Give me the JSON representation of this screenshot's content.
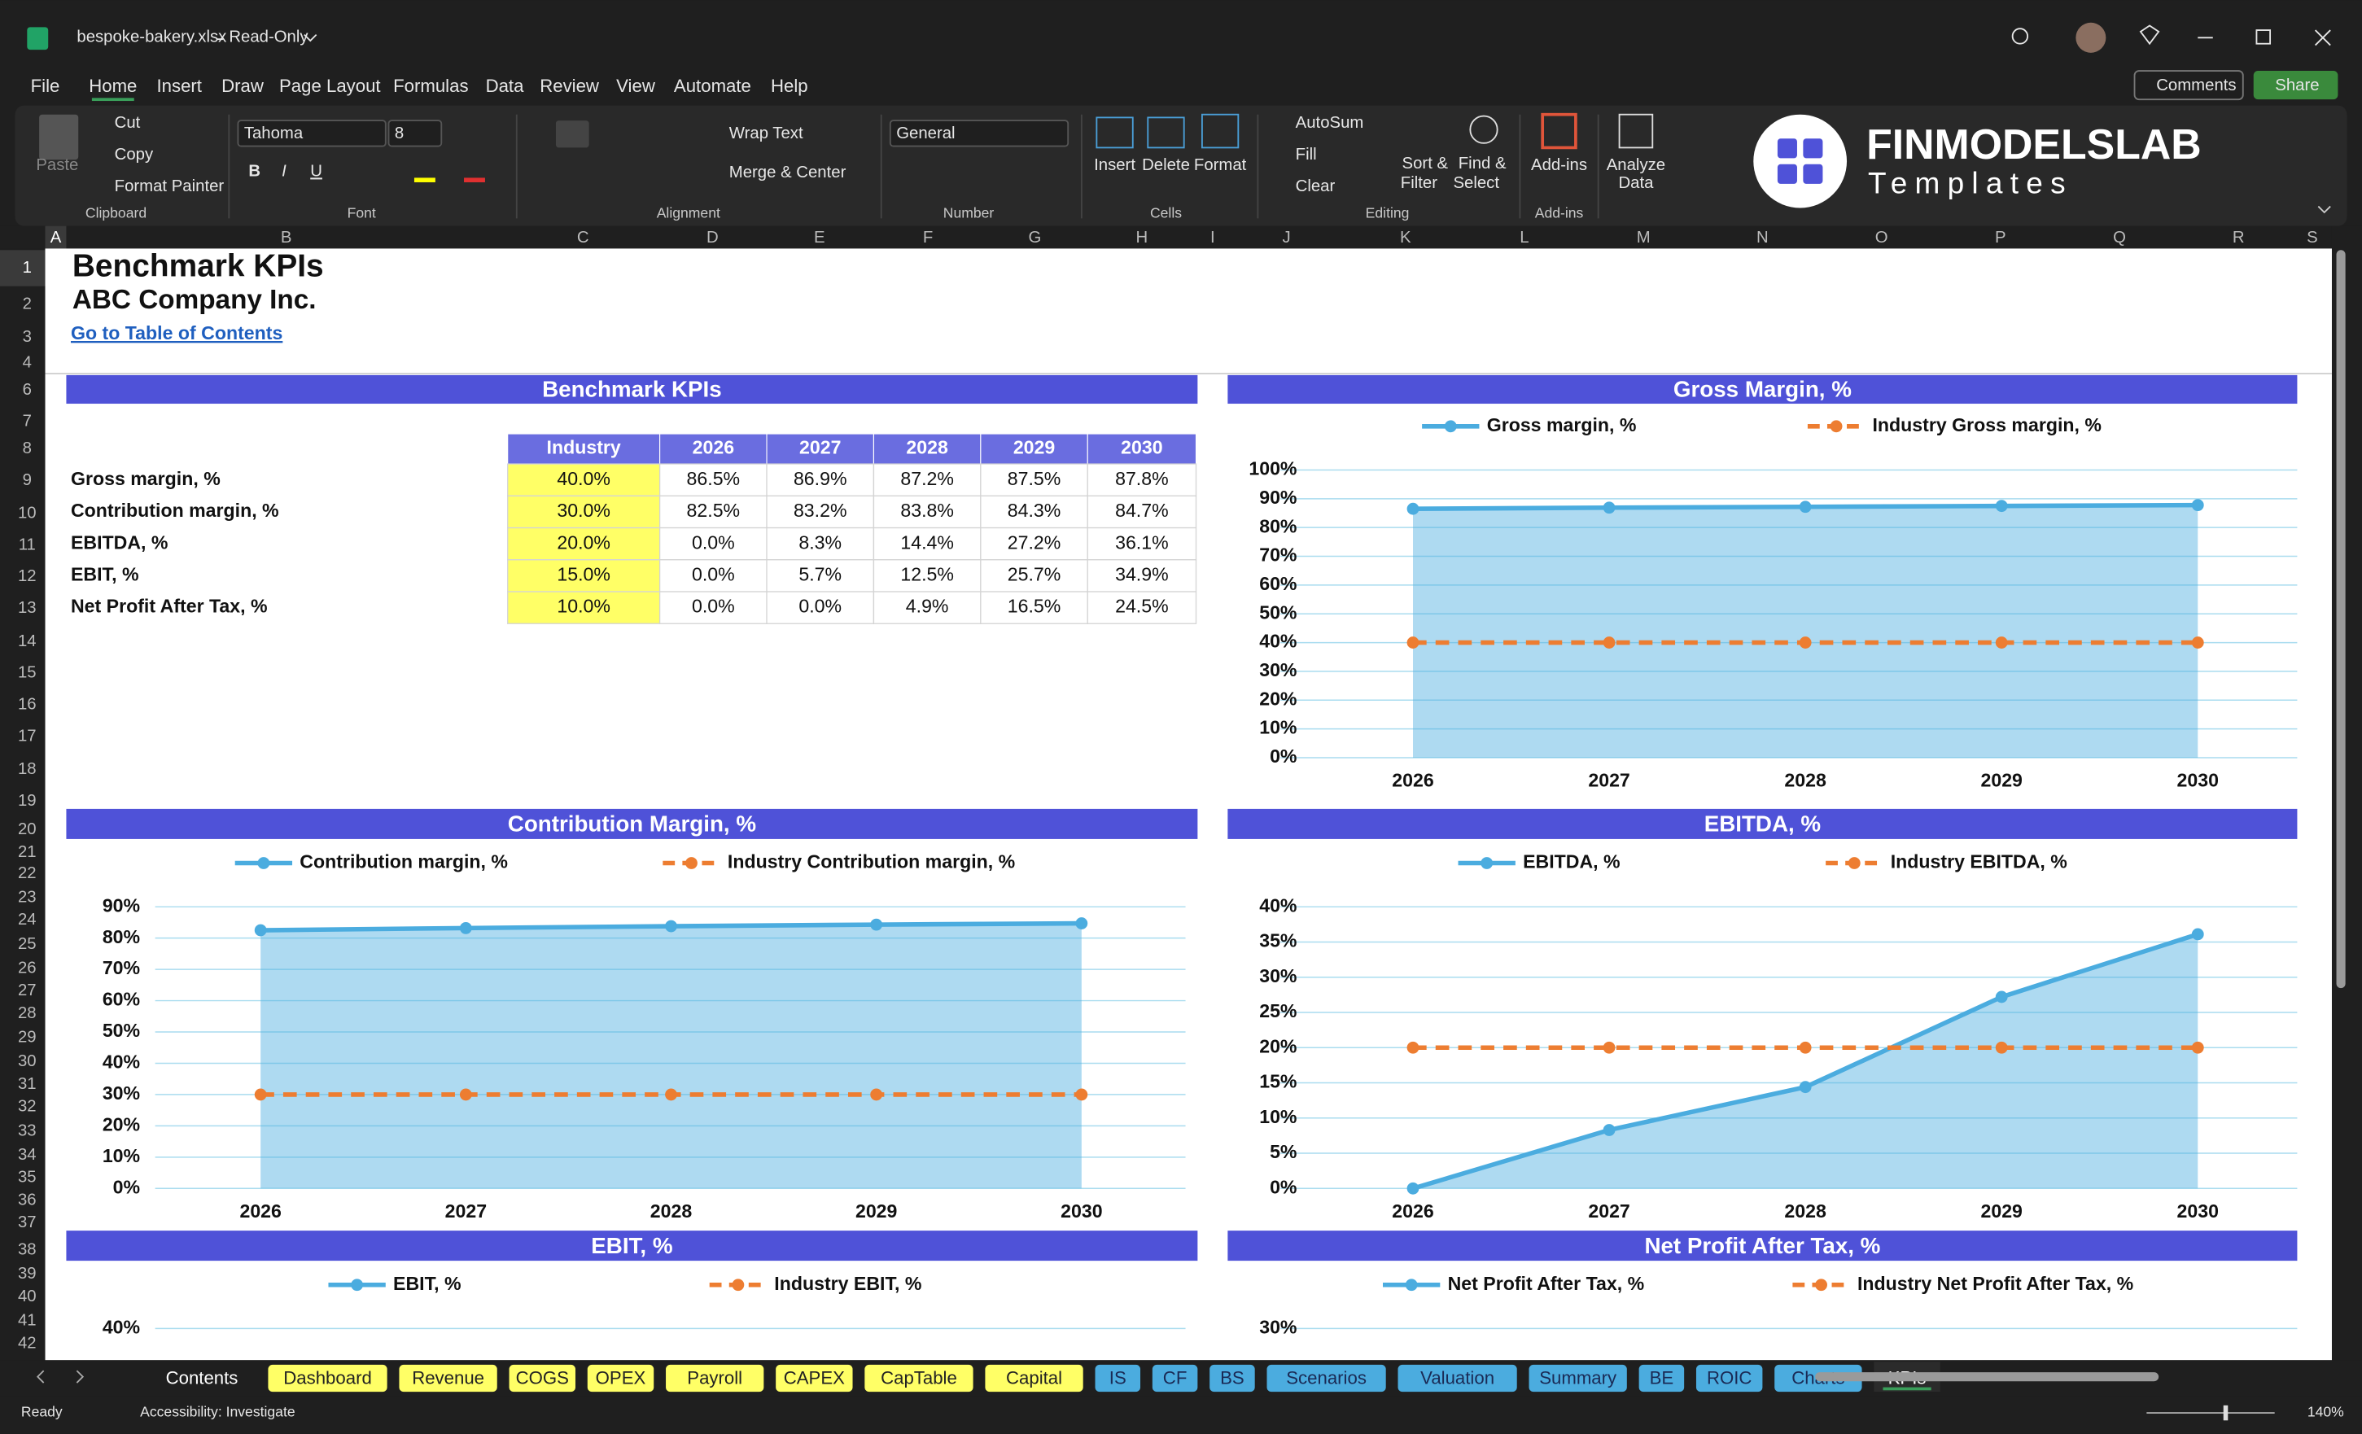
{
  "window": {
    "file_name": "bespoke-bakery.xlsx",
    "mode": "Read-Only"
  },
  "menu": [
    "File",
    "Home",
    "Insert",
    "Draw",
    "Page Layout",
    "Formulas",
    "Data",
    "Review",
    "View",
    "Automate",
    "Help"
  ],
  "top_buttons": {
    "comments": "Comments",
    "share": "Share"
  },
  "ribbon": {
    "clipboard": {
      "paste": "Paste",
      "cut": "Cut",
      "copy": "Copy",
      "format_painter": "Format Painter",
      "label": "Clipboard"
    },
    "font": {
      "name": "Tahoma",
      "size": "8",
      "label": "Font"
    },
    "alignment": {
      "wrap": "Wrap Text",
      "merge": "Merge & Center",
      "label": "Alignment"
    },
    "number": {
      "format": "General",
      "label": "Number"
    },
    "cells": {
      "insert": "Insert",
      "delete": "Delete",
      "format": "Format",
      "label": "Cells"
    },
    "editing": {
      "autosum": "AutoSum",
      "fill": "Fill",
      "clear": "Clear",
      "sort_filter": [
        "Sort &",
        "Filter"
      ],
      "find_select": [
        "Find &",
        "Select"
      ],
      "label": "Editing"
    },
    "addins": {
      "addins": "Add-ins",
      "label": "Add-ins"
    },
    "analyze": [
      "Analyze",
      "Data"
    ]
  },
  "logo": {
    "name": "FINMODELSLAB",
    "tagline": "Templates"
  },
  "columns": [
    "A",
    "B",
    "C",
    "D",
    "E",
    "F",
    "G",
    "H",
    "I",
    "J",
    "K",
    "L",
    "M",
    "N",
    "O",
    "P",
    "Q",
    "R",
    "S"
  ],
  "rows": [
    "1",
    "2",
    "3",
    "4",
    "6",
    "7",
    "8",
    "9",
    "10",
    "11",
    "12",
    "13",
    "14",
    "15",
    "16",
    "17",
    "18",
    "19",
    "20",
    "21",
    "22",
    "23",
    "24",
    "25",
    "26",
    "27",
    "28",
    "29",
    "30",
    "31",
    "32",
    "33",
    "34",
    "35",
    "36",
    "37",
    "38",
    "39",
    "40",
    "41",
    "42"
  ],
  "sheet": {
    "title": "Benchmark KPIs",
    "company": "ABC Company Inc.",
    "link": "Go to Table of Contents"
  },
  "kpi_table": {
    "title": "Benchmark KPIs",
    "header": [
      "Industry",
      "2026",
      "2027",
      "2028",
      "2029",
      "2030"
    ],
    "rows": [
      {
        "label": "Gross margin, %",
        "cells": [
          "40.0%",
          "86.5%",
          "86.9%",
          "87.2%",
          "87.5%",
          "87.8%"
        ]
      },
      {
        "label": "Contribution margin, %",
        "cells": [
          "30.0%",
          "82.5%",
          "83.2%",
          "83.8%",
          "84.3%",
          "84.7%"
        ]
      },
      {
        "label": "EBITDA, %",
        "cells": [
          "20.0%",
          "0.0%",
          "8.3%",
          "14.4%",
          "27.2%",
          "36.1%"
        ]
      },
      {
        "label": "EBIT, %",
        "cells": [
          "15.0%",
          "0.0%",
          "5.7%",
          "12.5%",
          "25.7%",
          "34.9%"
        ]
      },
      {
        "label": "Net Profit After Tax, %",
        "cells": [
          "10.0%",
          "0.0%",
          "0.0%",
          "4.9%",
          "16.5%",
          "24.5%"
        ]
      }
    ]
  },
  "charts": [
    {
      "type": "line",
      "title": "Gross Margin, %",
      "categories": [
        "2026",
        "2027",
        "2028",
        "2029",
        "2030"
      ],
      "series": [
        {
          "name": "Gross margin, %",
          "color": "#4bacdf",
          "values": [
            86.5,
            86.9,
            87.2,
            87.5,
            87.8
          ]
        },
        {
          "name": "Industry Gross margin, %",
          "color": "#ed7d31",
          "values": [
            40,
            40,
            40,
            40,
            40
          ]
        }
      ],
      "ylim": [
        0,
        100
      ],
      "yticks": [
        {
          "value": 0,
          "label": "0%"
        },
        {
          "value": 10,
          "label": "10%"
        },
        {
          "value": 20,
          "label": "20%"
        },
        {
          "value": 30,
          "label": "30%"
        },
        {
          "value": 40,
          "label": "40%"
        },
        {
          "value": 50,
          "label": "50%"
        },
        {
          "value": 60,
          "label": "60%"
        },
        {
          "value": 70,
          "label": "70%"
        },
        {
          "value": 80,
          "label": "80%"
        },
        {
          "value": 90,
          "label": "90%"
        },
        {
          "value": 100,
          "label": "100%"
        }
      ]
    },
    {
      "type": "line",
      "title": "Contribution Margin, %",
      "categories": [
        "2026",
        "2027",
        "2028",
        "2029",
        "2030"
      ],
      "series": [
        {
          "name": "Contribution margin, %",
          "color": "#4bacdf",
          "values": [
            82.5,
            83.2,
            83.8,
            84.3,
            84.7
          ]
        },
        {
          "name": "Industry Contribution margin, %",
          "color": "#ed7d31",
          "values": [
            30,
            30,
            30,
            30,
            30
          ]
        }
      ],
      "ylim": [
        0,
        90
      ],
      "yticks": [
        {
          "value": 0,
          "label": "0%"
        },
        {
          "value": 10,
          "label": "10%"
        },
        {
          "value": 20,
          "label": "20%"
        },
        {
          "value": 30,
          "label": "30%"
        },
        {
          "value": 40,
          "label": "40%"
        },
        {
          "value": 50,
          "label": "50%"
        },
        {
          "value": 60,
          "label": "60%"
        },
        {
          "value": 70,
          "label": "70%"
        },
        {
          "value": 80,
          "label": "80%"
        },
        {
          "value": 90,
          "label": "90%"
        }
      ]
    },
    {
      "type": "line",
      "title": "EBITDA, %",
      "categories": [
        "2026",
        "2027",
        "2028",
        "2029",
        "2030"
      ],
      "series": [
        {
          "name": "EBITDA, %",
          "color": "#4bacdf",
          "values": [
            0,
            8.3,
            14.4,
            27.2,
            36.1
          ]
        },
        {
          "name": "Industry EBITDA, %",
          "color": "#ed7d31",
          "values": [
            20,
            20,
            20,
            20,
            20
          ]
        }
      ],
      "ylim": [
        0,
        40
      ],
      "yticks": [
        {
          "value": 0,
          "label": "0%"
        },
        {
          "value": 5,
          "label": "5%"
        },
        {
          "value": 10,
          "label": "10%"
        },
        {
          "value": 15,
          "label": "15%"
        },
        {
          "value": 20,
          "label": "20%"
        },
        {
          "value": 25,
          "label": "25%"
        },
        {
          "value": 30,
          "label": "30%"
        },
        {
          "value": 35,
          "label": "35%"
        },
        {
          "value": 40,
          "label": "40%"
        }
      ]
    },
    {
      "type": "line",
      "title": "EBIT, %",
      "series": [
        {
          "name": "EBIT, %",
          "color": "#4bacdf"
        },
        {
          "name": "Industry EBIT, %",
          "color": "#ed7d31"
        }
      ],
      "yticks": [
        {
          "value": 40,
          "label": "40%"
        }
      ]
    },
    {
      "type": "line",
      "title": "Net Profit After Tax, %",
      "series": [
        {
          "name": "Net Profit After Tax, %",
          "color": "#4bacdf"
        },
        {
          "name": "Industry Net Profit After Tax, %",
          "color": "#ed7d31"
        }
      ],
      "yticks": [
        {
          "value": 30,
          "label": "30%"
        }
      ]
    }
  ],
  "sheet_tabs": [
    {
      "name": "Contents",
      "color": "none"
    },
    {
      "name": "Dashboard",
      "color": "#ffff66"
    },
    {
      "name": "Revenue",
      "color": "#ffff66"
    },
    {
      "name": "COGS",
      "color": "#ffff66"
    },
    {
      "name": "OPEX",
      "color": "#ffff66"
    },
    {
      "name": "Payroll",
      "color": "#ffff66"
    },
    {
      "name": "CAPEX",
      "color": "#ffff66"
    },
    {
      "name": "CapTable",
      "color": "#ffff66"
    },
    {
      "name": "Capital",
      "color": "#ffff66"
    },
    {
      "name": "IS",
      "color": "#4bacdf"
    },
    {
      "name": "CF",
      "color": "#4bacdf"
    },
    {
      "name": "BS",
      "color": "#4bacdf"
    },
    {
      "name": "Scenarios",
      "color": "#4bacdf"
    },
    {
      "name": "Valuation",
      "color": "#4bacdf"
    },
    {
      "name": "Summary",
      "color": "#4bacdf"
    },
    {
      "name": "BE",
      "color": "#4bacdf"
    },
    {
      "name": "ROIC",
      "color": "#4bacdf"
    },
    {
      "name": "Charts",
      "color": "#4bacdf"
    },
    {
      "name": "KPIs",
      "color": "active"
    }
  ],
  "status": {
    "ready": "Ready",
    "accessibility": "Accessibility: Investigate",
    "zoom": "140%"
  }
}
